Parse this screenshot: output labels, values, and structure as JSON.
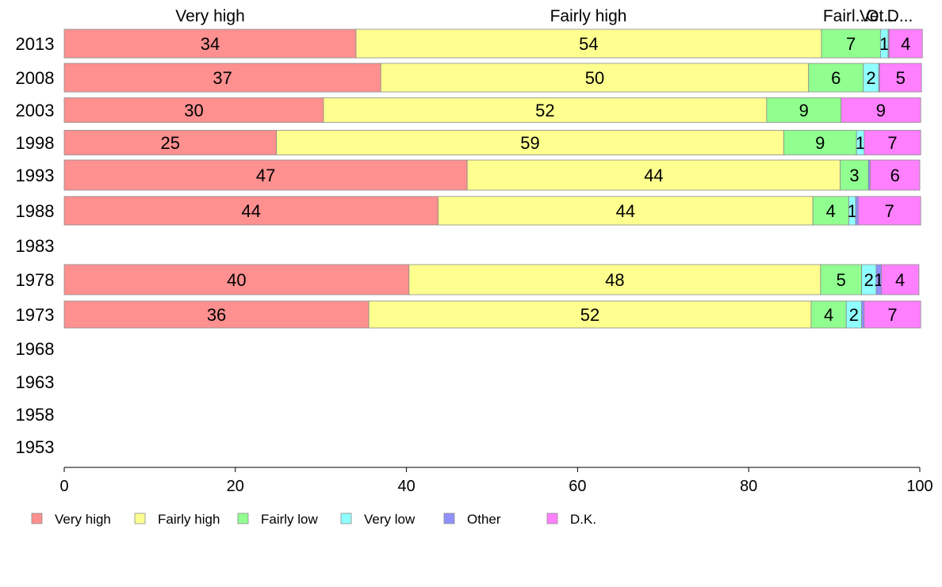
{
  "chart_data": {
    "type": "bar",
    "orientation": "horizontal",
    "stacked": true,
    "xlim": [
      0,
      100
    ],
    "x_ticks": [
      "0",
      "20",
      "40",
      "60",
      "80",
      "100"
    ],
    "top_labels": [
      "Very high",
      "Fairly high",
      "Fairl...",
      "Ve...",
      "Ot...",
      "D..."
    ],
    "categories": [
      "2013",
      "2008",
      "2003",
      "1998",
      "1993",
      "1988",
      "1983",
      "1978",
      "1973",
      "1968",
      "1963",
      "1958",
      "1953"
    ],
    "series": [
      {
        "name": "Very high",
        "color": "#ff9090",
        "values": [
          34.1,
          37.0,
          30.3,
          24.8,
          47.1,
          43.7,
          null,
          40.3,
          35.6,
          null,
          null,
          null,
          null
        ]
      },
      {
        "name": "Fairly high",
        "color": "#ffff90",
        "values": [
          54.4,
          50.0,
          51.8,
          59.3,
          43.6,
          43.8,
          null,
          48.1,
          51.7,
          null,
          null,
          null,
          null
        ]
      },
      {
        "name": "Fairly low",
        "color": "#90ff90",
        "values": [
          6.9,
          6.4,
          8.7,
          8.5,
          3.3,
          4.2,
          null,
          4.8,
          4.1,
          null,
          null,
          null,
          null
        ]
      },
      {
        "name": "Very low",
        "color": "#90ffff",
        "values": [
          0.9,
          1.8,
          0,
          0.9,
          0,
          0.8,
          null,
          1.7,
          1.8,
          null,
          null,
          null,
          null
        ]
      },
      {
        "name": "Other",
        "color": "#9090ff",
        "values": [
          0.1,
          0.1,
          0,
          0,
          0.2,
          0.3,
          null,
          0.6,
          0.3,
          null,
          null,
          null,
          null
        ]
      },
      {
        "name": "D.K.",
        "color": "#ff80ff",
        "values": [
          3.9,
          4.9,
          9.3,
          6.6,
          5.8,
          7.3,
          null,
          4.4,
          6.6,
          null,
          null,
          null,
          null
        ]
      }
    ],
    "data_labels": [
      [
        "34",
        "54",
        "7",
        "1",
        "",
        "4"
      ],
      [
        "37",
        "50",
        "6",
        "2",
        "",
        "5"
      ],
      [
        "30",
        "52",
        "9",
        "",
        "",
        "9"
      ],
      [
        "25",
        "59",
        "9",
        "1",
        "",
        "7"
      ],
      [
        "47",
        "44",
        "3",
        "",
        "",
        "6"
      ],
      [
        "44",
        "44",
        "4",
        "1",
        "",
        "7"
      ],
      [
        "",
        "",
        "",
        "",
        "",
        ""
      ],
      [
        "40",
        "48",
        "5",
        "2",
        "1",
        "4"
      ],
      [
        "36",
        "52",
        "4",
        "2",
        "",
        "7"
      ],
      [
        "",
        "",
        "",
        "",
        "",
        ""
      ],
      [
        "",
        "",
        "",
        "",
        "",
        ""
      ],
      [
        "",
        "",
        "",
        "",
        "",
        ""
      ],
      [
        "",
        "",
        "",
        "",
        "",
        ""
      ]
    ],
    "legend": {
      "placement": "bottom",
      "entries": [
        "Very high",
        "Fairly high",
        "Fairly low",
        "Very low",
        "Other",
        "D.K."
      ]
    },
    "grid": false
  }
}
